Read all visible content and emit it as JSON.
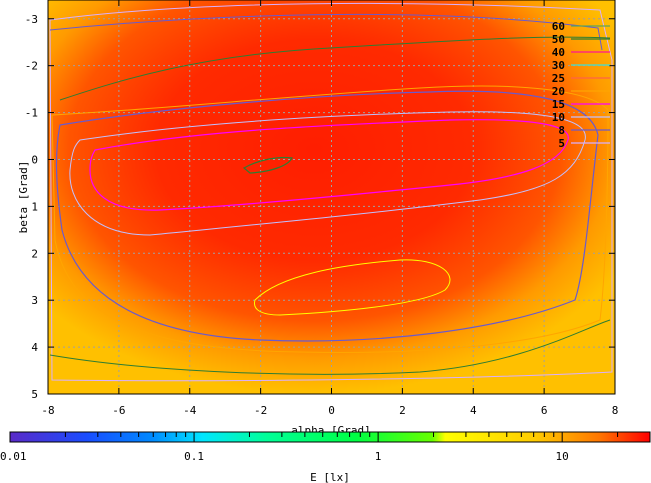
{
  "chart_data": {
    "type": "heatmap",
    "xlabel": "alpha [Grad]",
    "ylabel": "beta [Grad]",
    "xlim": [
      -8,
      8
    ],
    "ylim": [
      -3.4,
      5
    ],
    "y_reversed": true,
    "x_ticks": [
      "-8",
      "-6",
      "-4",
      "-2",
      "0",
      "2",
      "4",
      "6",
      "8"
    ],
    "y_ticks": [
      "-3",
      "-2",
      "-1",
      "0",
      "1",
      "2",
      "3",
      "4",
      "5"
    ],
    "grid": true,
    "legend_placement": "top-right",
    "contour_levels": [
      {
        "label": "60",
        "value": 60,
        "color": "#5fa55a"
      },
      {
        "label": "50",
        "value": 50,
        "color": "#2e7d32"
      },
      {
        "label": "40",
        "value": 40,
        "color": "#ff1493"
      },
      {
        "label": "30",
        "value": 30,
        "color": "#40e0d0"
      },
      {
        "label": "25",
        "value": 25,
        "color": "#ff6347"
      },
      {
        "label": "20",
        "value": 20,
        "color": "#ffa500"
      },
      {
        "label": "15",
        "value": 15,
        "color": "#ff00ff"
      },
      {
        "label": "10",
        "value": 10,
        "color": "#c0c0ff"
      },
      {
        "label": "8",
        "value": 8,
        "color": "#6a5acd"
      },
      {
        "label": "5",
        "value": 5,
        "color": "#d8b0ff"
      }
    ],
    "colorbar": {
      "label": "E [lx]",
      "scale": "log",
      "range": [
        0.01,
        30
      ],
      "tick_labels": [
        "0.01",
        "0.1",
        "1",
        "10"
      ],
      "tick_values": [
        0.01,
        0.1,
        1,
        10
      ]
    }
  }
}
